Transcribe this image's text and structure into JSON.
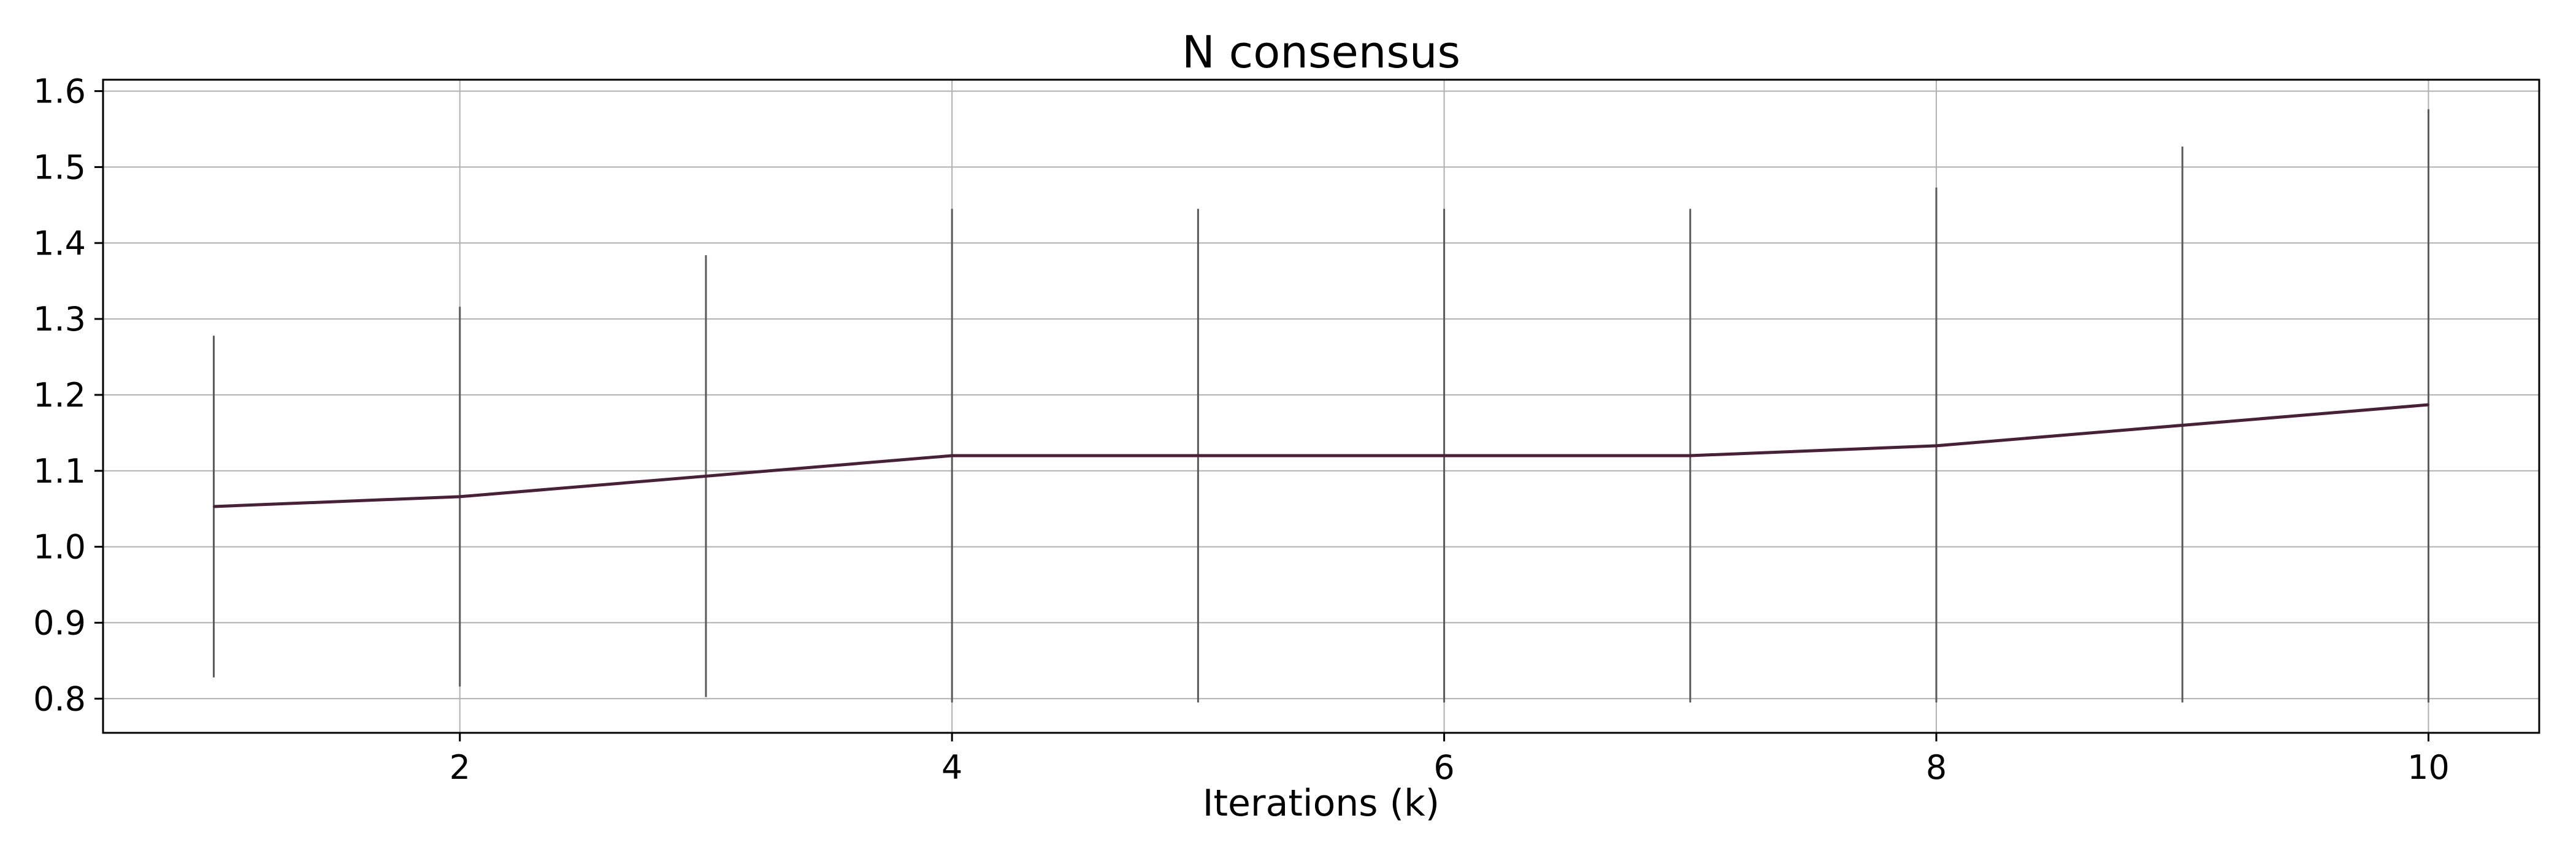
{
  "chart_data": {
    "type": "line",
    "title": "N consensus",
    "xlabel": "Iterations (k)",
    "ylabel": "",
    "x": [
      1,
      2,
      3,
      4,
      5,
      6,
      7,
      8,
      9,
      10
    ],
    "series": [
      {
        "name": "N consensus",
        "values": [
          1.053,
          1.066,
          1.093,
          1.12,
          1.12,
          1.12,
          1.12,
          1.133,
          1.16,
          1.187
        ],
        "err_low": [
          0.828,
          0.816,
          0.802,
          0.795,
          0.795,
          0.795,
          0.795,
          0.795,
          0.795,
          0.795
        ],
        "err_high": [
          1.278,
          1.316,
          1.384,
          1.445,
          1.445,
          1.445,
          1.445,
          1.473,
          1.527,
          1.576
        ]
      }
    ],
    "xlim": [
      0.55,
      10.45
    ],
    "ylim": [
      0.755,
      1.615
    ],
    "xticks": [
      2,
      4,
      6,
      8,
      10
    ],
    "xtick_labels": [
      "2",
      "4",
      "6",
      "8",
      "10"
    ],
    "yticks": [
      0.8,
      0.9,
      1.0,
      1.1,
      1.2,
      1.3,
      1.4,
      1.5,
      1.6
    ],
    "ytick_labels": [
      "0.8",
      "0.9",
      "1.0",
      "1.1",
      "1.2",
      "1.3",
      "1.4",
      "1.5",
      "1.6"
    ],
    "grid": true,
    "colors": {
      "line": "#4a2038",
      "errorbar": "#5a5a5a",
      "grid": "#b0b0b0",
      "axes": "#000000"
    }
  }
}
